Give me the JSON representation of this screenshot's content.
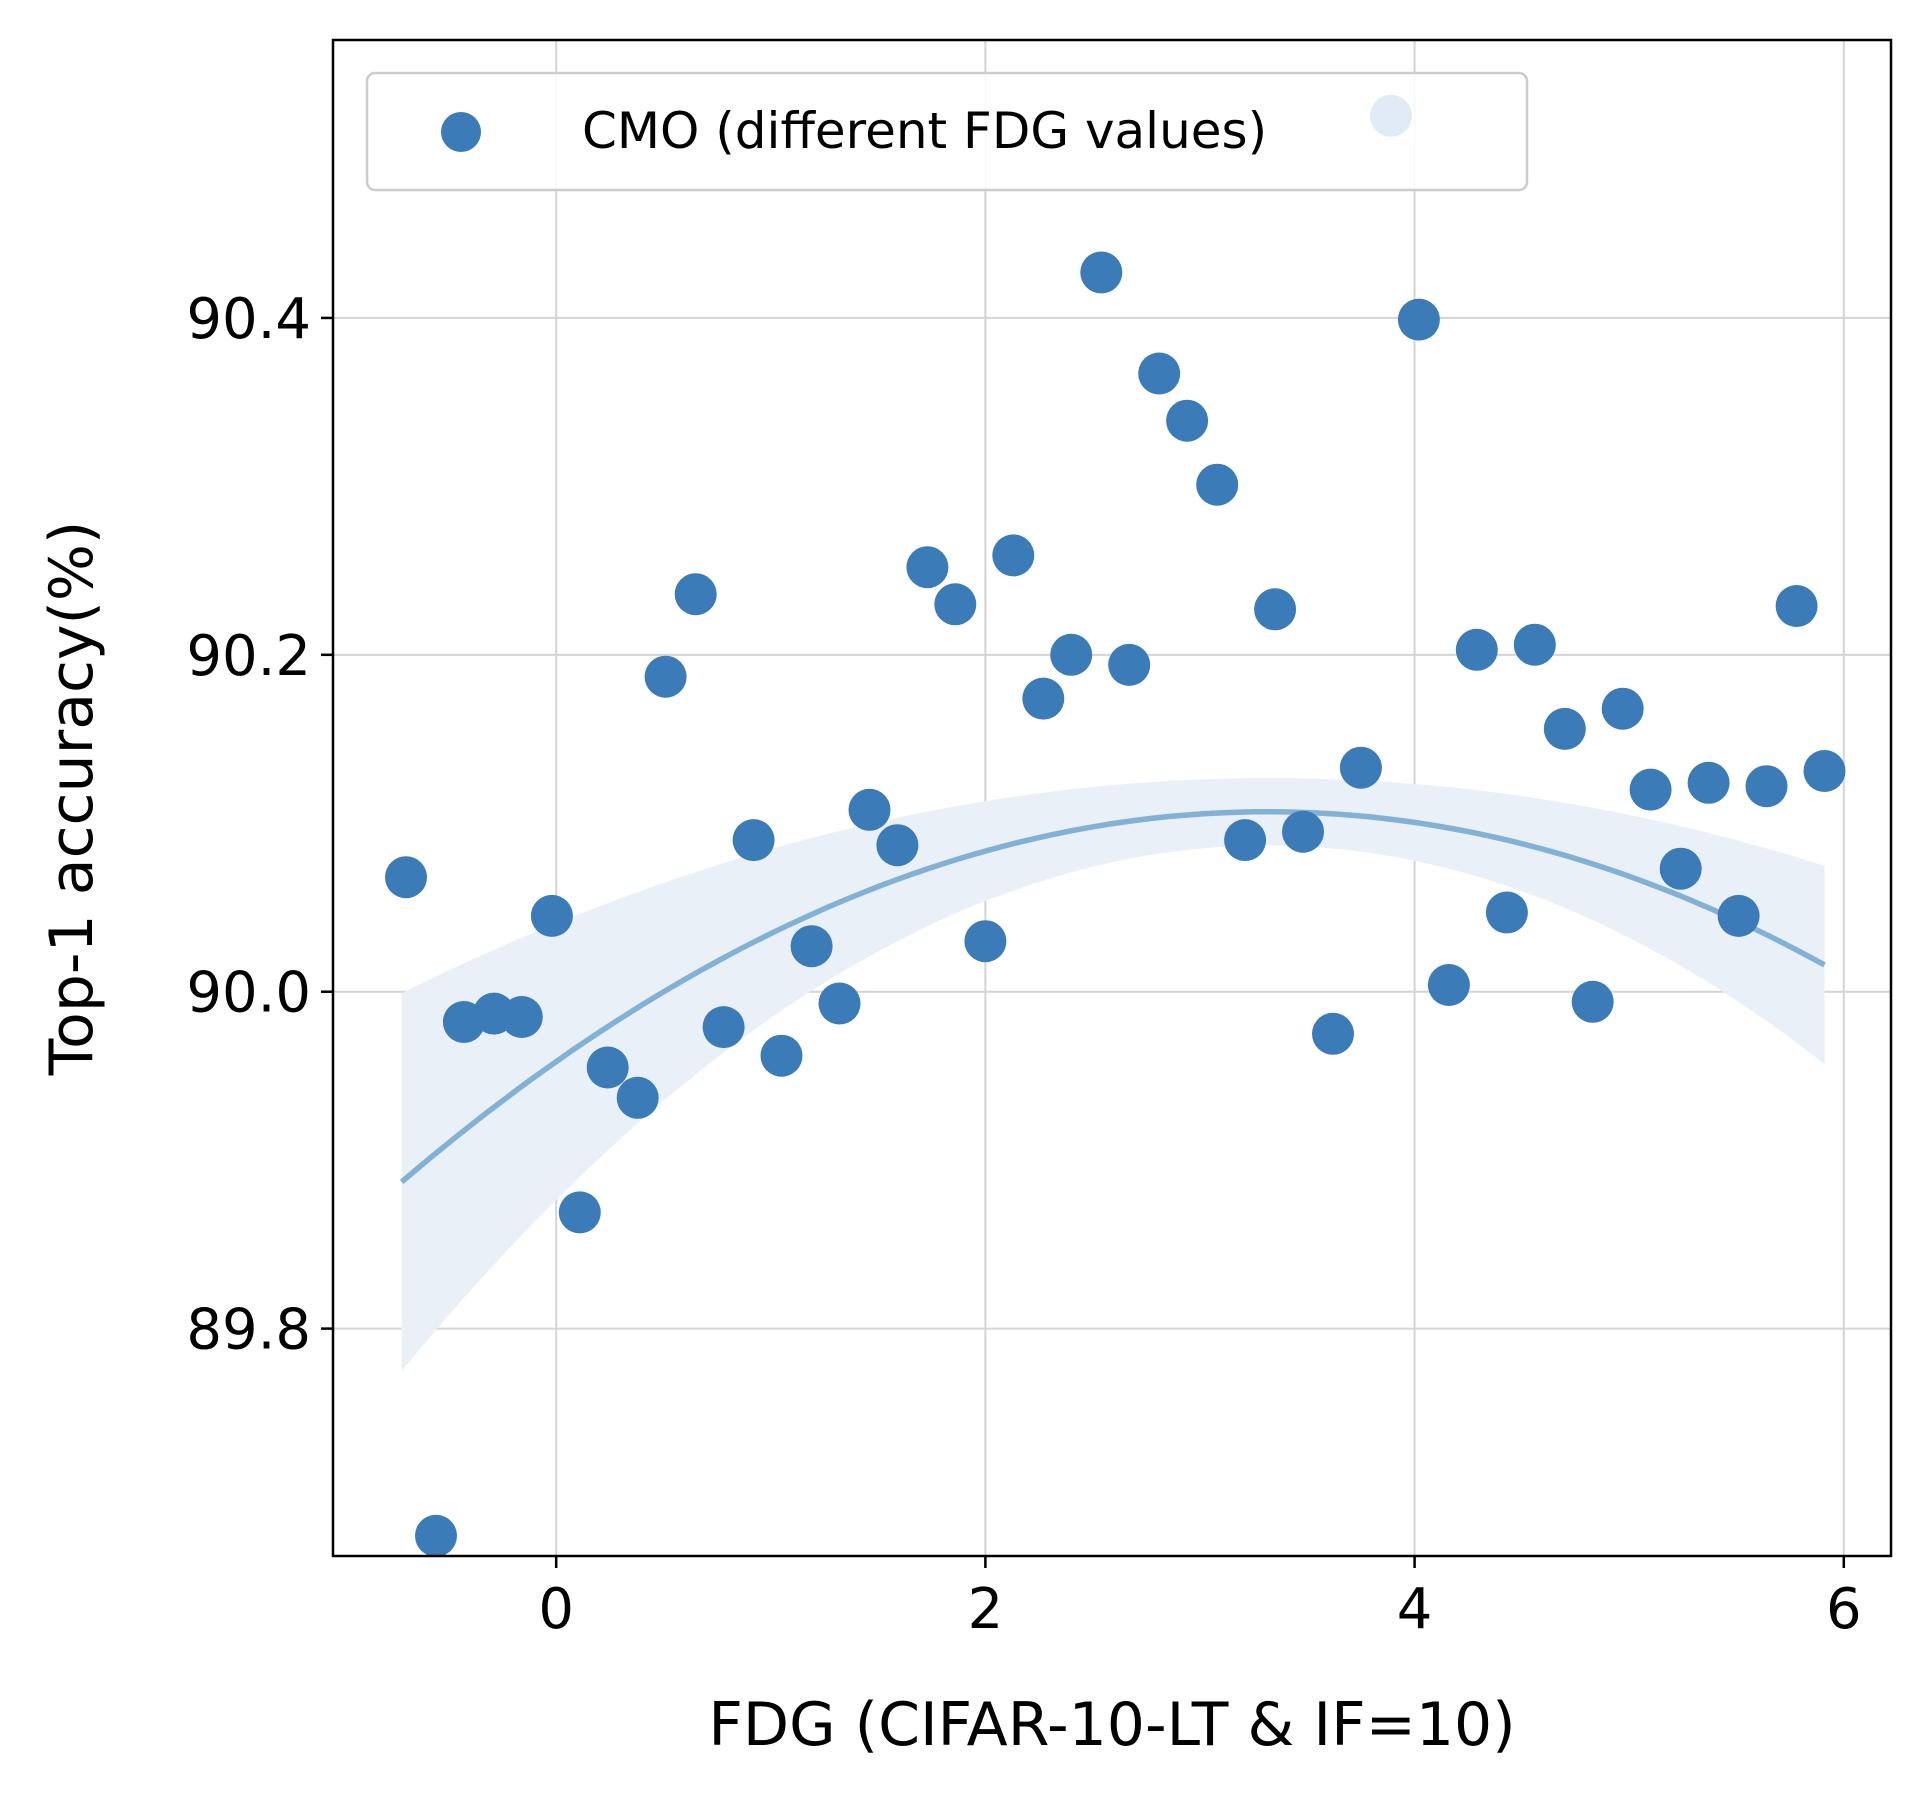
{
  "chart_data": {
    "type": "scatter",
    "title": "",
    "xlabel": "FDG (CIFAR-10-LT & IF=10)",
    "ylabel": "Top-1 accuracy(%)",
    "xlim": [
      -1.04,
      6.22
    ],
    "ylim": [
      89.665,
      90.565
    ],
    "xticks": [
      0,
      2,
      4,
      6
    ],
    "xtick_labels": [
      "0",
      "2",
      "4",
      "6"
    ],
    "yticks": [
      89.8,
      90.0,
      90.2,
      90.4
    ],
    "ytick_labels": [
      "89.8",
      "90.0",
      "90.2",
      "90.4"
    ],
    "grid": true,
    "legend": {
      "position": "top-left",
      "entries": [
        "CMO (different FDG values)"
      ]
    },
    "colors": {
      "points": "#3a7bb8",
      "fit_line": "#83b1d6",
      "ci_band": "#e9f0f8",
      "grid": "#d4d4d4",
      "axes": "#000000"
    },
    "series": [
      {
        "name": "CMO (different FDG values)",
        "kind": "scatter",
        "points": [
          [
            -0.7,
            90.068
          ],
          [
            -0.56,
            89.677
          ],
          [
            -0.43,
            89.982
          ],
          [
            -0.29,
            89.987
          ],
          [
            -0.16,
            89.985
          ],
          [
            -0.02,
            90.045
          ],
          [
            0.11,
            89.869
          ],
          [
            0.24,
            89.955
          ],
          [
            0.38,
            89.937
          ],
          [
            0.51,
            90.187
          ],
          [
            0.65,
            90.236
          ],
          [
            0.78,
            89.979
          ],
          [
            0.92,
            90.09
          ],
          [
            1.05,
            89.962
          ],
          [
            1.19,
            90.027
          ],
          [
            1.32,
            89.993
          ],
          [
            1.46,
            90.108
          ],
          [
            1.59,
            90.087
          ],
          [
            1.73,
            90.252
          ],
          [
            1.86,
            90.23
          ],
          [
            2.0,
            90.03
          ],
          [
            2.13,
            90.259
          ],
          [
            2.27,
            90.174
          ],
          [
            2.4,
            90.2
          ],
          [
            2.54,
            90.427
          ],
          [
            2.67,
            90.194
          ],
          [
            2.81,
            90.367
          ],
          [
            2.94,
            90.339
          ],
          [
            3.08,
            90.301
          ],
          [
            3.21,
            90.09
          ],
          [
            3.35,
            90.227
          ],
          [
            3.48,
            90.095
          ],
          [
            3.62,
            89.975
          ],
          [
            3.75,
            90.133
          ],
          [
            3.89,
            90.52
          ],
          [
            4.02,
            90.399
          ],
          [
            4.16,
            90.004
          ],
          [
            4.29,
            90.203
          ],
          [
            4.43,
            90.047
          ],
          [
            4.56,
            90.206
          ],
          [
            4.7,
            90.156
          ],
          [
            4.83,
            89.994
          ],
          [
            4.97,
            90.168
          ],
          [
            5.1,
            90.12
          ],
          [
            5.24,
            90.073
          ],
          [
            5.37,
            90.124
          ],
          [
            5.51,
            90.045
          ],
          [
            5.64,
            90.122
          ],
          [
            5.78,
            90.229
          ],
          [
            5.91,
            90.131
          ]
        ]
      },
      {
        "name": "quadratic fit",
        "kind": "regression",
        "x_range": [
          -0.72,
          5.91
        ],
        "coefficients": {
          "a": -0.0135,
          "b": 0.0895,
          "c": 89.9585
        },
        "ci_halfwidth": {
          "center": 3.3,
          "min": 0.02,
          "growth": 0.0057
        }
      }
    ]
  }
}
